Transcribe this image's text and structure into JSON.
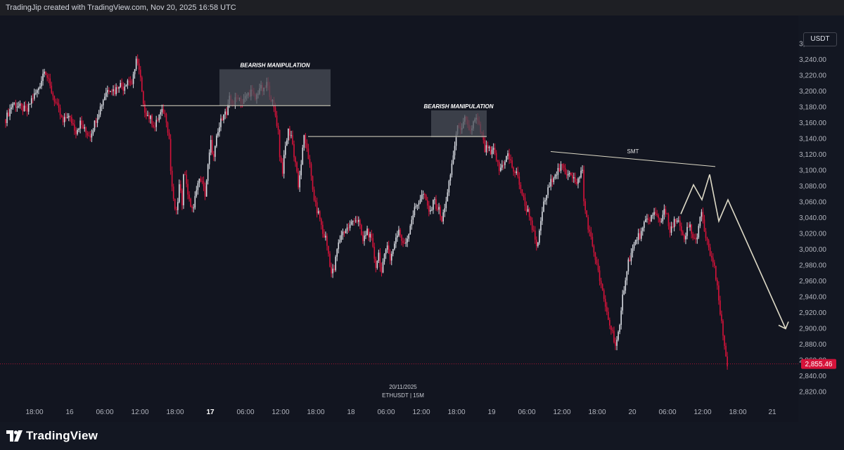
{
  "header": {
    "caption": "TradingJip created with TradingView.com, Nov 20, 2025 16:58 UTC"
  },
  "currency": "USDT",
  "footer": {
    "brand": "TradingView"
  },
  "colors": {
    "up": "#d8dbe2",
    "down": "#d6133a",
    "zone": "#4a4d57",
    "line": "#ddd9c6",
    "price_tag": "#d6133a"
  },
  "chart_data": {
    "type": "candlestick",
    "symbol": "ETHUSDT | 15M",
    "date_label": "20/11/2025",
    "ylim": [
      2810,
      3270
    ],
    "y_ticks": [
      2820,
      2840,
      2860,
      2880,
      2900,
      2920,
      2940,
      2960,
      2980,
      3000,
      3020,
      3040,
      3060,
      3080,
      3100,
      3120,
      3140,
      3160,
      3180,
      3200,
      3220,
      3240,
      3260
    ],
    "current_price": 2855.46,
    "current_price_label": "2,855.46",
    "x_labels": [
      "18:00",
      "16",
      "06:00",
      "12:00",
      "18:00",
      "17",
      "06:00",
      "12:00",
      "18:00",
      "18",
      "06:00",
      "12:00",
      "18:00",
      "19",
      "06:00",
      "12:00",
      "18:00",
      "20",
      "06:00",
      "12:00",
      "18:00",
      "21"
    ],
    "x_label_bold": [
      "17"
    ],
    "price_path": [
      [
        0,
        3165
      ],
      [
        5,
        3185
      ],
      [
        10,
        3180
      ],
      [
        15,
        3175
      ],
      [
        18,
        3190
      ],
      [
        22,
        3200
      ],
      [
        25,
        3215
      ],
      [
        27,
        3230
      ],
      [
        29,
        3218
      ],
      [
        31,
        3205
      ],
      [
        34,
        3190
      ],
      [
        37,
        3175
      ],
      [
        40,
        3160
      ],
      [
        43,
        3170
      ],
      [
        46,
        3162
      ],
      [
        49,
        3150
      ],
      [
        52,
        3160
      ],
      [
        56,
        3148
      ],
      [
        59,
        3145
      ],
      [
        62,
        3160
      ],
      [
        66,
        3180
      ],
      [
        70,
        3200
      ],
      [
        73,
        3205
      ],
      [
        76,
        3200
      ],
      [
        79,
        3210
      ],
      [
        82,
        3205
      ],
      [
        85,
        3215
      ],
      [
        88,
        3210
      ],
      [
        90,
        3225
      ],
      [
        91,
        3245
      ],
      [
        92,
        3235
      ],
      [
        94,
        3215
      ],
      [
        96,
        3180
      ],
      [
        99,
        3170
      ],
      [
        101,
        3165
      ],
      [
        104,
        3155
      ],
      [
        107,
        3170
      ],
      [
        110,
        3175
      ],
      [
        112,
        3165
      ],
      [
        114,
        3140
      ],
      [
        115,
        3100
      ],
      [
        117,
        3060
      ],
      [
        119,
        3045
      ],
      [
        121,
        3080
      ],
      [
        123,
        3060
      ],
      [
        124,
        3100
      ],
      [
        126,
        3085
      ],
      [
        128,
        3060
      ],
      [
        131,
        3050
      ],
      [
        133,
        3080
      ],
      [
        136,
        3090
      ],
      [
        139,
        3070
      ],
      [
        141,
        3105
      ],
      [
        143,
        3135
      ],
      [
        145,
        3115
      ],
      [
        147,
        3140
      ],
      [
        149,
        3155
      ],
      [
        152,
        3175
      ],
      [
        154,
        3170
      ],
      [
        156,
        3190
      ],
      [
        159,
        3185
      ],
      [
        162,
        3195
      ],
      [
        165,
        3185
      ],
      [
        168,
        3195
      ],
      [
        171,
        3200
      ],
      [
        174,
        3190
      ],
      [
        177,
        3205
      ],
      [
        180,
        3200
      ],
      [
        182,
        3210
      ],
      [
        184,
        3198
      ],
      [
        186,
        3185
      ],
      [
        188,
        3170
      ],
      [
        190,
        3150
      ],
      [
        191,
        3120
      ],
      [
        193,
        3100
      ],
      [
        195,
        3130
      ],
      [
        197,
        3150
      ],
      [
        199,
        3145
      ],
      [
        201,
        3120
      ],
      [
        203,
        3100
      ],
      [
        204,
        3075
      ],
      [
        206,
        3110
      ],
      [
        208,
        3140
      ],
      [
        210,
        3130
      ],
      [
        212,
        3105
      ],
      [
        214,
        3075
      ],
      [
        216,
        3055
      ],
      [
        219,
        3040
      ],
      [
        221,
        3020
      ],
      [
        223,
        3015
      ],
      [
        225,
        2995
      ],
      [
        227,
        2970
      ],
      [
        229,
        2975
      ],
      [
        231,
        3000
      ],
      [
        234,
        3020
      ],
      [
        237,
        3025
      ],
      [
        240,
        3030
      ],
      [
        243,
        3040
      ],
      [
        246,
        3035
      ],
      [
        249,
        3010
      ],
      [
        252,
        3025
      ],
      [
        255,
        3010
      ],
      [
        258,
        2980
      ],
      [
        260,
        2995
      ],
      [
        262,
        2970
      ],
      [
        264,
        2990
      ],
      [
        266,
        3010
      ],
      [
        268,
        2985
      ],
      [
        271,
        3010
      ],
      [
        274,
        3025
      ],
      [
        277,
        3005
      ],
      [
        280,
        3015
      ],
      [
        283,
        3040
      ],
      [
        286,
        3055
      ],
      [
        289,
        3065
      ],
      [
        291,
        3070
      ],
      [
        293,
        3060
      ],
      [
        296,
        3045
      ],
      [
        298,
        3065
      ],
      [
        300,
        3055
      ],
      [
        302,
        3050
      ],
      [
        304,
        3035
      ],
      [
        306,
        3055
      ],
      [
        308,
        3070
      ],
      [
        310,
        3095
      ],
      [
        312,
        3120
      ],
      [
        314,
        3145
      ],
      [
        316,
        3160
      ],
      [
        318,
        3150
      ],
      [
        320,
        3165
      ],
      [
        322,
        3155
      ],
      [
        324,
        3150
      ],
      [
        326,
        3160
      ],
      [
        328,
        3165
      ],
      [
        330,
        3155
      ],
      [
        332,
        3145
      ],
      [
        334,
        3125
      ],
      [
        336,
        3130
      ],
      [
        338,
        3120
      ],
      [
        340,
        3125
      ],
      [
        342,
        3115
      ],
      [
        344,
        3100
      ],
      [
        347,
        3110
      ],
      [
        350,
        3120
      ],
      [
        352,
        3110
      ],
      [
        354,
        3100
      ],
      [
        356,
        3095
      ],
      [
        358,
        3085
      ],
      [
        360,
        3070
      ],
      [
        362,
        3055
      ],
      [
        365,
        3045
      ],
      [
        368,
        3020
      ],
      [
        370,
        3000
      ],
      [
        372,
        3020
      ],
      [
        374,
        3050
      ],
      [
        377,
        3070
      ],
      [
        380,
        3085
      ],
      [
        382,
        3095
      ],
      [
        385,
        3100
      ],
      [
        388,
        3105
      ],
      [
        390,
        3095
      ],
      [
        393,
        3100
      ],
      [
        396,
        3090
      ],
      [
        398,
        3080
      ],
      [
        400,
        3095
      ],
      [
        402,
        3100
      ],
      [
        403,
        3060
      ],
      [
        405,
        3040
      ],
      [
        407,
        3020
      ],
      [
        409,
        3005
      ],
      [
        411,
        2990
      ],
      [
        413,
        2970
      ],
      [
        415,
        2955
      ],
      [
        417,
        2935
      ],
      [
        419,
        2920
      ],
      [
        421,
        2905
      ],
      [
        423,
        2895
      ],
      [
        425,
        2880
      ],
      [
        426,
        2885
      ],
      [
        428,
        2900
      ],
      [
        430,
        2940
      ],
      [
        432,
        2965
      ],
      [
        434,
        2985
      ],
      [
        437,
        3000
      ],
      [
        440,
        3015
      ],
      [
        443,
        3020
      ],
      [
        446,
        3035
      ],
      [
        449,
        3040
      ],
      [
        452,
        3045
      ],
      [
        455,
        3040
      ],
      [
        457,
        3035
      ],
      [
        459,
        3055
      ],
      [
        461,
        3040
      ],
      [
        463,
        3020
      ],
      [
        465,
        3030
      ],
      [
        467,
        3040
      ],
      [
        469,
        3035
      ],
      [
        471,
        3020
      ],
      [
        473,
        3010
      ],
      [
        475,
        3025
      ],
      [
        477,
        3030
      ],
      [
        479,
        3015
      ],
      [
        481,
        3010
      ],
      [
        483,
        3030
      ],
      [
        485,
        3045
      ],
      [
        486,
        3035
      ],
      [
        488,
        3015
      ],
      [
        490,
        3000
      ],
      [
        492,
        2990
      ],
      [
        494,
        2975
      ],
      [
        496,
        2950
      ],
      [
        498,
        2920
      ],
      [
        500,
        2890
      ],
      [
        502,
        2865
      ],
      [
        503,
        2855
      ]
    ],
    "annotations": {
      "bearish_label": "BEARISH MANIPULATION",
      "smt_label": "SMT",
      "zone1_price": [
        3182,
        3228
      ],
      "zone2_price": [
        3142,
        3176
      ],
      "support_line_1_price": 3182,
      "support_line_2_price": 3143,
      "smt_line_prices": [
        3124,
        3105
      ],
      "projection_prices": [
        3045,
        3082,
        3063,
        3095,
        3036,
        3063,
        2900
      ]
    }
  }
}
